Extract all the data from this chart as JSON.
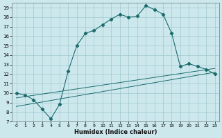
{
  "title": "",
  "xlabel": "Humidex (Indice chaleur)",
  "bg_color": "#cce8ed",
  "grid_color": "#a0c8d0",
  "line_color": "#1a6b6b",
  "ylim": [
    7,
    19.5
  ],
  "xlim": [
    -0.5,
    23.5
  ],
  "yticks": [
    7,
    8,
    9,
    10,
    11,
    12,
    13,
    14,
    15,
    16,
    17,
    18,
    19
  ],
  "xticks": [
    0,
    1,
    2,
    3,
    4,
    5,
    6,
    7,
    8,
    9,
    10,
    11,
    12,
    13,
    14,
    15,
    16,
    17,
    18,
    19,
    20,
    21,
    22,
    23
  ],
  "curve1_x": [
    0,
    1,
    2,
    3,
    4,
    5,
    6,
    7,
    8,
    9,
    10,
    11,
    12,
    13,
    14,
    15,
    16,
    17,
    18,
    19,
    20,
    21,
    22,
    23
  ],
  "curve1_y": [
    10.0,
    9.8,
    9.3,
    8.3,
    7.3,
    8.8,
    12.3,
    15.0,
    16.3,
    16.6,
    17.2,
    17.8,
    18.3,
    18.0,
    18.1,
    19.2,
    18.8,
    18.3,
    16.3,
    12.8,
    13.1,
    12.8,
    12.5,
    12.0
  ],
  "curve2_x": [
    0,
    23
  ],
  "curve2_y": [
    8.6,
    12.2
  ],
  "curve3_x": [
    0,
    23
  ],
  "curve3_y": [
    9.5,
    12.6
  ]
}
